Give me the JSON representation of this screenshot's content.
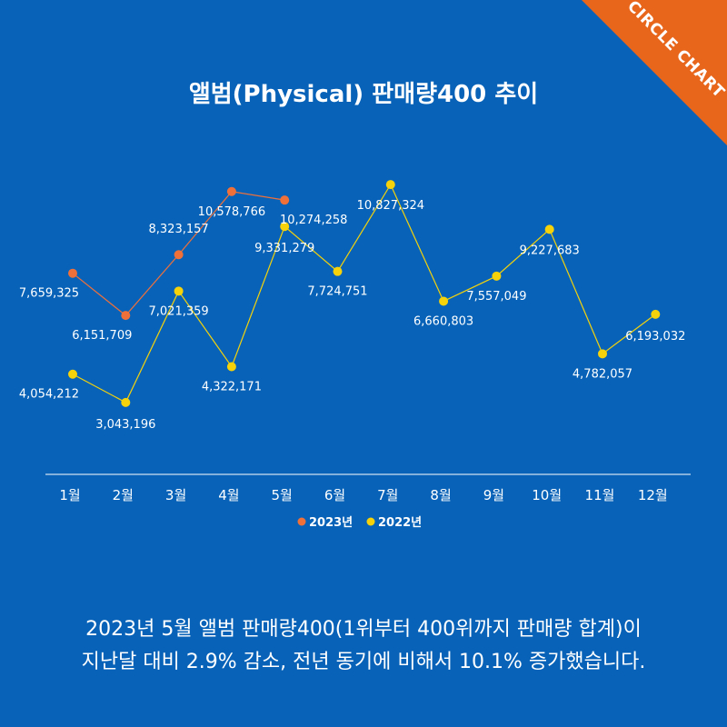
{
  "brand": {
    "label": "CIRCLE CHART",
    "color": "#e8661c"
  },
  "caption": {
    "line1": "2023년 5월 앨범 판매량400(1위부터 400위까지 판매량 합계)이",
    "line2": "지난달 대비 2.9% 감소, 전년 동기에 비해서 10.1% 증가했습니다."
  },
  "colors": {
    "background": "#0863b8",
    "series_2023": "#f0703a",
    "series_2022": "#f5d20a"
  },
  "chart_data": {
    "type": "line",
    "title": "앨범(Physical) 판매량400 추이",
    "xlabel": "",
    "ylabel": "",
    "categories": [
      "1월",
      "2월",
      "3월",
      "4월",
      "5월",
      "6월",
      "7월",
      "8월",
      "9월",
      "10월",
      "11월",
      "12월"
    ],
    "ylim": [
      0,
      11500000
    ],
    "grid": false,
    "legend": "bottom",
    "series": [
      {
        "name": "2023년",
        "color": "#f0703a",
        "values": [
          7659325,
          6151709,
          8323157,
          10578766,
          10274258,
          null,
          null,
          null,
          null,
          null,
          null,
          null
        ]
      },
      {
        "name": "2022년",
        "color": "#f5d20a",
        "values": [
          4054212,
          3043196,
          7021359,
          4322171,
          9331279,
          7724751,
          10827324,
          6660803,
          7557049,
          9227683,
          4782057,
          6193032
        ]
      }
    ]
  }
}
